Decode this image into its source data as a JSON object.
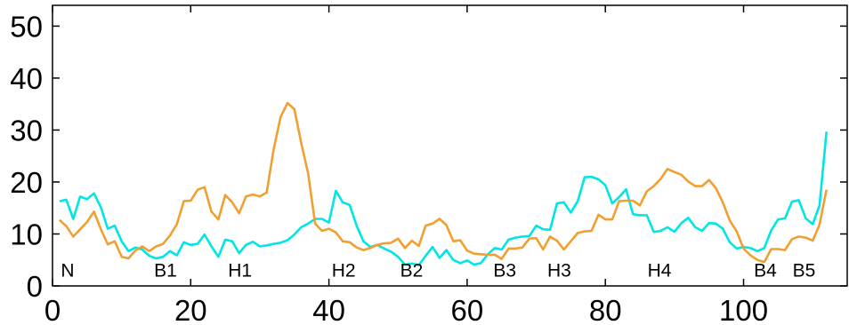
{
  "chart_data": {
    "type": "line",
    "title": "",
    "xlabel": "",
    "ylabel": "",
    "xlim": [
      0,
      115
    ],
    "ylim": [
      0,
      54
    ],
    "x_ticks": [
      0,
      20,
      40,
      60,
      80,
      100
    ],
    "y_ticks": [
      0,
      10,
      20,
      30,
      40,
      50
    ],
    "grid": false,
    "legend": "none",
    "series": [
      {
        "color": "#00e5e5",
        "points": [
          [
            1,
            16.3
          ],
          [
            2,
            16.6
          ],
          [
            3,
            12.9
          ],
          [
            4,
            17.2
          ],
          [
            5,
            16.7
          ],
          [
            6,
            17.8
          ],
          [
            7,
            15.1
          ],
          [
            8,
            11.0
          ],
          [
            9,
            11.6
          ],
          [
            10,
            8.6
          ],
          [
            11,
            6.7
          ],
          [
            12,
            7.4
          ],
          [
            13,
            7.0
          ],
          [
            14,
            5.8
          ],
          [
            15,
            5.3
          ],
          [
            16,
            5.6
          ],
          [
            17,
            6.7
          ],
          [
            18,
            5.9
          ],
          [
            19,
            8.4
          ],
          [
            20,
            7.9
          ],
          [
            21,
            8.1
          ],
          [
            22,
            9.9
          ],
          [
            23,
            7.6
          ],
          [
            24,
            5.6
          ],
          [
            25,
            8.9
          ],
          [
            26,
            8.6
          ],
          [
            27,
            6.3
          ],
          [
            28,
            7.9
          ],
          [
            29,
            8.5
          ],
          [
            30,
            7.6
          ],
          [
            31,
            7.8
          ],
          [
            32,
            8.1
          ],
          [
            33,
            8.3
          ],
          [
            34,
            8.8
          ],
          [
            35,
            9.9
          ],
          [
            36,
            11.3
          ],
          [
            37,
            12.0
          ],
          [
            38,
            12.9
          ],
          [
            39,
            12.9
          ],
          [
            40,
            12.2
          ],
          [
            41,
            18.3
          ],
          [
            42,
            16.1
          ],
          [
            43,
            15.6
          ],
          [
            44,
            11.6
          ],
          [
            45,
            8.6
          ],
          [
            46,
            7.5
          ],
          [
            47,
            7.9
          ],
          [
            48,
            7.2
          ],
          [
            49,
            6.6
          ],
          [
            50,
            5.6
          ],
          [
            51,
            4.1
          ],
          [
            52,
            4.3
          ],
          [
            53,
            4.0
          ],
          [
            54,
            5.8
          ],
          [
            55,
            7.5
          ],
          [
            56,
            5.4
          ],
          [
            57,
            6.9
          ],
          [
            58,
            5.0
          ],
          [
            59,
            4.4
          ],
          [
            60,
            4.9
          ],
          [
            61,
            4.1
          ],
          [
            62,
            4.4
          ],
          [
            63,
            6.1
          ],
          [
            64,
            7.3
          ],
          [
            65,
            7.0
          ],
          [
            66,
            8.9
          ],
          [
            67,
            9.3
          ],
          [
            68,
            9.5
          ],
          [
            69,
            9.6
          ],
          [
            70,
            11.6
          ],
          [
            71,
            10.9
          ],
          [
            72,
            10.8
          ],
          [
            73,
            15.9
          ],
          [
            74,
            16.1
          ],
          [
            75,
            14.1
          ],
          [
            76,
            16.3
          ],
          [
            77,
            20.9
          ],
          [
            78,
            21.0
          ],
          [
            79,
            20.5
          ],
          [
            80,
            19.4
          ],
          [
            81,
            15.9
          ],
          [
            82,
            17.1
          ],
          [
            83,
            18.6
          ],
          [
            84,
            13.8
          ],
          [
            85,
            13.6
          ],
          [
            86,
            13.6
          ],
          [
            87,
            10.4
          ],
          [
            88,
            10.6
          ],
          [
            89,
            11.3
          ],
          [
            90,
            10.4
          ],
          [
            91,
            12.1
          ],
          [
            92,
            13.1
          ],
          [
            93,
            11.3
          ],
          [
            94,
            10.6
          ],
          [
            95,
            12.1
          ],
          [
            96,
            12.0
          ],
          [
            97,
            11.0
          ],
          [
            98,
            8.4
          ],
          [
            99,
            7.2
          ],
          [
            100,
            7.5
          ],
          [
            101,
            7.3
          ],
          [
            102,
            6.7
          ],
          [
            103,
            7.3
          ],
          [
            104,
            10.7
          ],
          [
            105,
            12.8
          ],
          [
            106,
            13.0
          ],
          [
            107,
            16.2
          ],
          [
            108,
            16.5
          ],
          [
            109,
            13.0
          ],
          [
            110,
            11.9
          ],
          [
            111,
            15.5
          ],
          [
            112,
            29.7
          ]
        ]
      },
      {
        "color": "#f0a030",
        "points": [
          [
            1,
            12.7
          ],
          [
            2,
            11.5
          ],
          [
            3,
            9.5
          ],
          [
            4,
            10.9
          ],
          [
            5,
            12.3
          ],
          [
            6,
            14.3
          ],
          [
            7,
            10.9
          ],
          [
            8,
            8.0
          ],
          [
            9,
            8.6
          ],
          [
            10,
            5.6
          ],
          [
            11,
            5.3
          ],
          [
            12,
            6.8
          ],
          [
            13,
            7.6
          ],
          [
            14,
            6.7
          ],
          [
            15,
            7.6
          ],
          [
            16,
            8.1
          ],
          [
            17,
            9.7
          ],
          [
            18,
            11.9
          ],
          [
            19,
            16.3
          ],
          [
            20,
            16.4
          ],
          [
            21,
            18.5
          ],
          [
            22,
            19.0
          ],
          [
            23,
            14.3
          ],
          [
            24,
            12.8
          ],
          [
            25,
            17.5
          ],
          [
            26,
            16.1
          ],
          [
            27,
            14.0
          ],
          [
            28,
            17.2
          ],
          [
            29,
            17.6
          ],
          [
            30,
            17.2
          ],
          [
            31,
            18.0
          ],
          [
            32,
            26.3
          ],
          [
            33,
            32.5
          ],
          [
            34,
            35.2
          ],
          [
            35,
            34.0
          ],
          [
            36,
            27.5
          ],
          [
            37,
            21.6
          ],
          [
            38,
            12.0
          ],
          [
            39,
            10.6
          ],
          [
            40,
            11.0
          ],
          [
            41,
            10.3
          ],
          [
            42,
            8.6
          ],
          [
            43,
            8.4
          ],
          [
            44,
            7.4
          ],
          [
            45,
            6.9
          ],
          [
            46,
            7.3
          ],
          [
            47,
            7.9
          ],
          [
            48,
            8.2
          ],
          [
            49,
            8.3
          ],
          [
            50,
            9.1
          ],
          [
            51,
            7.3
          ],
          [
            52,
            8.7
          ],
          [
            53,
            7.7
          ],
          [
            54,
            11.6
          ],
          [
            55,
            12.0
          ],
          [
            56,
            12.9
          ],
          [
            57,
            11.7
          ],
          [
            58,
            8.6
          ],
          [
            59,
            8.8
          ],
          [
            60,
            6.8
          ],
          [
            61,
            6.2
          ],
          [
            62,
            6.1
          ],
          [
            63,
            6.0
          ],
          [
            64,
            6.0
          ],
          [
            65,
            5.2
          ],
          [
            66,
            7.2
          ],
          [
            67,
            7.2
          ],
          [
            68,
            7.4
          ],
          [
            69,
            9.1
          ],
          [
            70,
            9.2
          ],
          [
            71,
            7.0
          ],
          [
            72,
            9.5
          ],
          [
            73,
            8.7
          ],
          [
            74,
            7.0
          ],
          [
            75,
            8.6
          ],
          [
            76,
            10.2
          ],
          [
            77,
            10.5
          ],
          [
            78,
            10.6
          ],
          [
            79,
            13.7
          ],
          [
            80,
            12.8
          ],
          [
            81,
            12.8
          ],
          [
            82,
            16.3
          ],
          [
            83,
            16.4
          ],
          [
            84,
            16.4
          ],
          [
            85,
            15.5
          ],
          [
            86,
            18.2
          ],
          [
            87,
            19.2
          ],
          [
            88,
            20.6
          ],
          [
            89,
            22.5
          ],
          [
            90,
            21.9
          ],
          [
            91,
            21.4
          ],
          [
            92,
            20.1
          ],
          [
            93,
            19.2
          ],
          [
            94,
            19.2
          ],
          [
            95,
            20.4
          ],
          [
            96,
            18.8
          ],
          [
            97,
            16.1
          ],
          [
            98,
            12.6
          ],
          [
            99,
            10.5
          ],
          [
            100,
            7.2
          ],
          [
            101,
            5.9
          ],
          [
            102,
            5.0
          ],
          [
            103,
            4.6
          ],
          [
            104,
            7.1
          ],
          [
            105,
            7.1
          ],
          [
            106,
            6.9
          ],
          [
            107,
            9.0
          ],
          [
            108,
            9.5
          ],
          [
            109,
            9.3
          ],
          [
            110,
            8.7
          ],
          [
            111,
            11.8
          ],
          [
            112,
            18.5
          ]
        ]
      }
    ],
    "annotations": [
      {
        "text": "N",
        "x": 1.2,
        "y": 1.8
      },
      {
        "text": "B1",
        "x": 14.7,
        "y": 1.8
      },
      {
        "text": "H1",
        "x": 25.4,
        "y": 1.8
      },
      {
        "text": "H2",
        "x": 40.4,
        "y": 1.8
      },
      {
        "text": "B2",
        "x": 50.3,
        "y": 1.8
      },
      {
        "text": "B3",
        "x": 63.8,
        "y": 1.8
      },
      {
        "text": "H3",
        "x": 71.6,
        "y": 1.8
      },
      {
        "text": "H4",
        "x": 86.1,
        "y": 1.8
      },
      {
        "text": "B4",
        "x": 101.5,
        "y": 1.8
      },
      {
        "text": "B5",
        "x": 107.1,
        "y": 1.8
      }
    ]
  }
}
